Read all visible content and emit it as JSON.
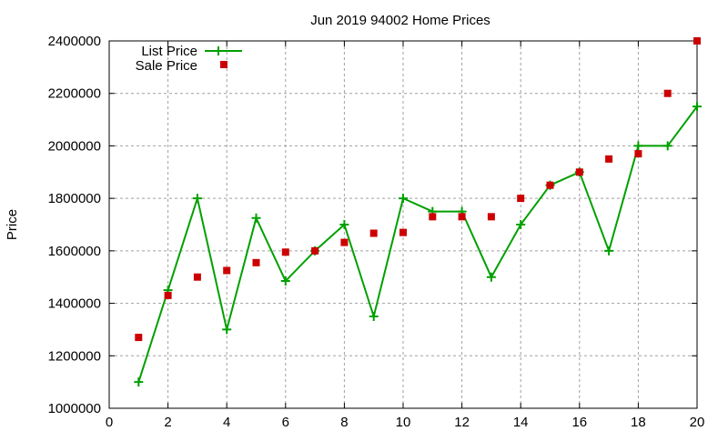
{
  "chart_data": {
    "type": "line",
    "title": "Jun 2019 94002 Home Prices",
    "xlabel": "",
    "ylabel": "Price",
    "xlim": [
      0,
      20
    ],
    "ylim": [
      1000000,
      2400000
    ],
    "x_ticks": [
      "0",
      "2",
      "4",
      "6",
      "8",
      "10",
      "12",
      "14",
      "16",
      "18",
      "20"
    ],
    "y_ticks": [
      "1000000",
      "1200000",
      "1400000",
      "1600000",
      "1800000",
      "2000000",
      "2200000",
      "2400000"
    ],
    "grid": true,
    "legend_position": "top-left",
    "x": [
      1,
      2,
      3,
      4,
      5,
      6,
      7,
      8,
      9,
      10,
      11,
      12,
      13,
      14,
      15,
      16,
      17,
      18,
      19,
      20
    ],
    "series": [
      {
        "name": "List Price",
        "style": "linespoints",
        "marker": "plus",
        "color": "#00a000",
        "values": [
          1100000,
          1450000,
          1800000,
          1300000,
          1725000,
          1485000,
          1600000,
          1700000,
          1350000,
          1800000,
          1750000,
          1750000,
          1500000,
          1700000,
          1850000,
          1900000,
          1600000,
          2000000,
          2000000,
          2150000
        ]
      },
      {
        "name": "Sale Price",
        "style": "points",
        "marker": "square",
        "color": "#cc0000",
        "values": [
          1270000,
          1430000,
          1500000,
          1525000,
          1555000,
          1595000,
          1600000,
          1632000,
          1667000,
          1670000,
          1730000,
          1730000,
          1730000,
          1800000,
          1850000,
          1900000,
          1950000,
          1970000,
          2200000,
          2400000
        ]
      }
    ]
  }
}
